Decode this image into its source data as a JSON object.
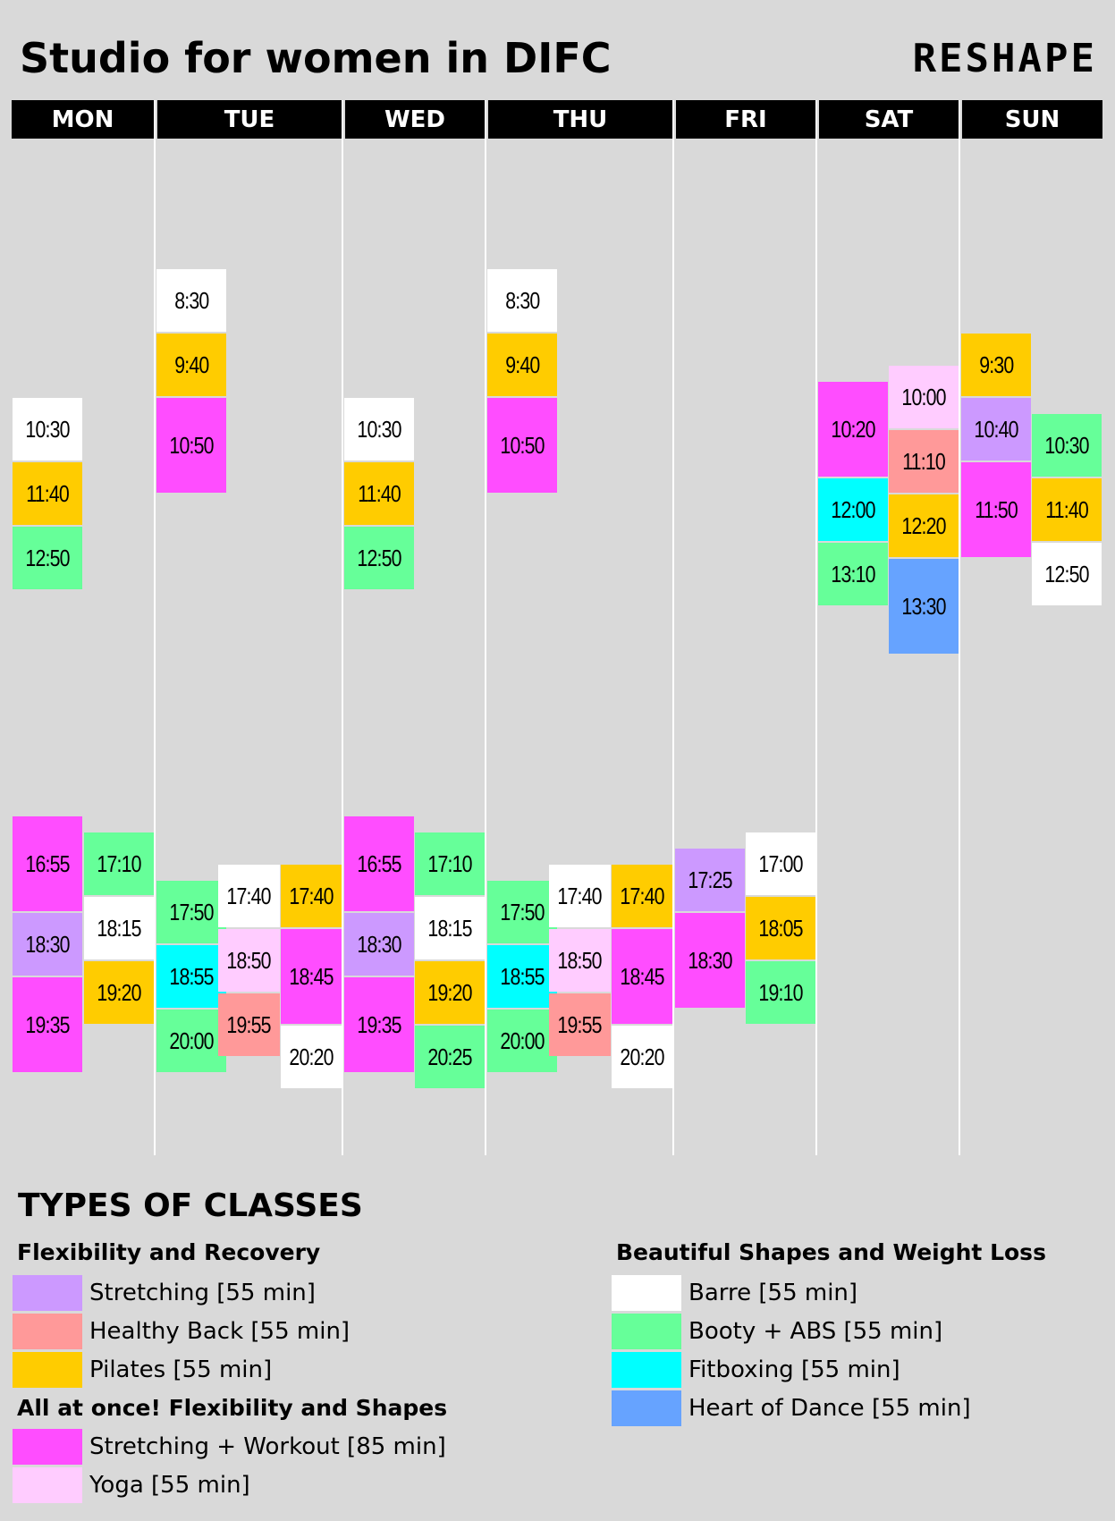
{
  "title": "Studio for women in DIFC",
  "logo": "RESHAPE",
  "days": [
    "MON",
    "TUE",
    "WED",
    "THU",
    "FRI",
    "SAT",
    "SUN"
  ],
  "colors": {
    "stretching": "#cc99ff",
    "healthy_back": "#ff9999",
    "pilates": "#ffcc00",
    "stretching_workout": "#ff4dff",
    "yoga": "#ffccff",
    "barre": "#ffffff",
    "booty_abs": "#66ff99",
    "fitboxing": "#00ffff",
    "heart_of_dance": "#66a3ff"
  },
  "schedule": {
    "mon": {
      "sub1": [
        {
          "time": "10:30",
          "type": "barre"
        },
        {
          "time": "11:40",
          "type": "pilates"
        },
        {
          "time": "12:50",
          "type": "booty_abs"
        },
        {
          "time": "16:55",
          "type": "stretching_workout"
        },
        {
          "time": "18:30",
          "type": "stretching"
        },
        {
          "time": "19:35",
          "type": "stretching_workout"
        }
      ],
      "sub2": [
        {
          "time": "17:10",
          "type": "booty_abs"
        },
        {
          "time": "18:15",
          "type": "barre"
        },
        {
          "time": "19:20",
          "type": "pilates"
        }
      ]
    },
    "tue": {
      "sub1": [
        {
          "time": "8:30",
          "type": "barre"
        },
        {
          "time": "9:40",
          "type": "pilates"
        },
        {
          "time": "10:50",
          "type": "stretching_workout"
        },
        {
          "time": "17:50",
          "type": "booty_abs"
        },
        {
          "time": "18:55",
          "type": "fitboxing"
        },
        {
          "time": "20:00",
          "type": "booty_abs"
        }
      ],
      "sub2": [
        {
          "time": "17:40",
          "type": "barre"
        },
        {
          "time": "18:50",
          "type": "yoga"
        },
        {
          "time": "19:55",
          "type": "healthy_back"
        }
      ],
      "sub3": [
        {
          "time": "17:40",
          "type": "pilates"
        },
        {
          "time": "18:45",
          "type": "stretching_workout"
        },
        {
          "time": "20:20",
          "type": "barre"
        }
      ]
    },
    "wed": {
      "sub1": [
        {
          "time": "10:30",
          "type": "barre"
        },
        {
          "time": "11:40",
          "type": "pilates"
        },
        {
          "time": "12:50",
          "type": "booty_abs"
        },
        {
          "time": "16:55",
          "type": "stretching_workout"
        },
        {
          "time": "18:30",
          "type": "stretching"
        },
        {
          "time": "19:35",
          "type": "stretching_workout"
        }
      ],
      "sub2": [
        {
          "time": "17:10",
          "type": "booty_abs"
        },
        {
          "time": "18:15",
          "type": "barre"
        },
        {
          "time": "19:20",
          "type": "pilates"
        },
        {
          "time": "20:25",
          "type": "booty_abs"
        }
      ]
    },
    "thu": {
      "sub1": [
        {
          "time": "8:30",
          "type": "barre"
        },
        {
          "time": "9:40",
          "type": "pilates"
        },
        {
          "time": "10:50",
          "type": "stretching_workout"
        },
        {
          "time": "17:50",
          "type": "booty_abs"
        },
        {
          "time": "18:55",
          "type": "fitboxing"
        },
        {
          "time": "20:00",
          "type": "booty_abs"
        }
      ],
      "sub2": [
        {
          "time": "17:40",
          "type": "barre"
        },
        {
          "time": "18:50",
          "type": "yoga"
        },
        {
          "time": "19:55",
          "type": "healthy_back"
        }
      ],
      "sub3": [
        {
          "time": "17:40",
          "type": "pilates"
        },
        {
          "time": "18:45",
          "type": "stretching_workout"
        },
        {
          "time": "20:20",
          "type": "barre"
        }
      ]
    },
    "fri": {
      "sub1": [
        {
          "time": "17:25",
          "type": "stretching"
        },
        {
          "time": "18:30",
          "type": "stretching_workout"
        }
      ],
      "sub2": [
        {
          "time": "17:00",
          "type": "barre"
        },
        {
          "time": "18:05",
          "type": "pilates"
        },
        {
          "time": "19:10",
          "type": "booty_abs"
        }
      ]
    },
    "sat": {
      "sub1": [
        {
          "time": "10:20",
          "type": "stretching_workout"
        },
        {
          "time": "12:00",
          "type": "fitboxing"
        },
        {
          "time": "13:10",
          "type": "booty_abs"
        }
      ],
      "sub2": [
        {
          "time": "10:00",
          "type": "yoga"
        },
        {
          "time": "11:10",
          "type": "healthy_back"
        },
        {
          "time": "12:20",
          "type": "pilates"
        },
        {
          "time": "13:30",
          "type": "heart_of_dance"
        }
      ]
    },
    "sun": {
      "sub1": [
        {
          "time": "9:30",
          "type": "pilates"
        },
        {
          "time": "10:40",
          "type": "stretching"
        },
        {
          "time": "11:50",
          "type": "stretching_workout"
        }
      ],
      "sub2": [
        {
          "time": "10:30",
          "type": "booty_abs"
        },
        {
          "time": "11:40",
          "type": "pilates"
        },
        {
          "time": "12:50",
          "type": "barre"
        }
      ]
    }
  },
  "legend": {
    "title": "TYPES OF CLASSES",
    "group_flex": "Flexibility and Recovery",
    "group_all": "All at once! Flexibility and Shapes",
    "group_shapes": "Beautiful Shapes and Weight Loss",
    "stretching": "Stretching [55 min]",
    "healthy_back": "Healthy Back [55 min]",
    "pilates": "Pilates [55 min]",
    "stretching_workout": "Stretching + Workout [85 min]",
    "yoga": "Yoga [55 min]",
    "barre": "Barre [55 min]",
    "booty_abs": "Booty + ABS [55 min]",
    "fitboxing": "Fitboxing [55 min]",
    "heart_of_dance": "Heart of Dance [55 min]"
  }
}
